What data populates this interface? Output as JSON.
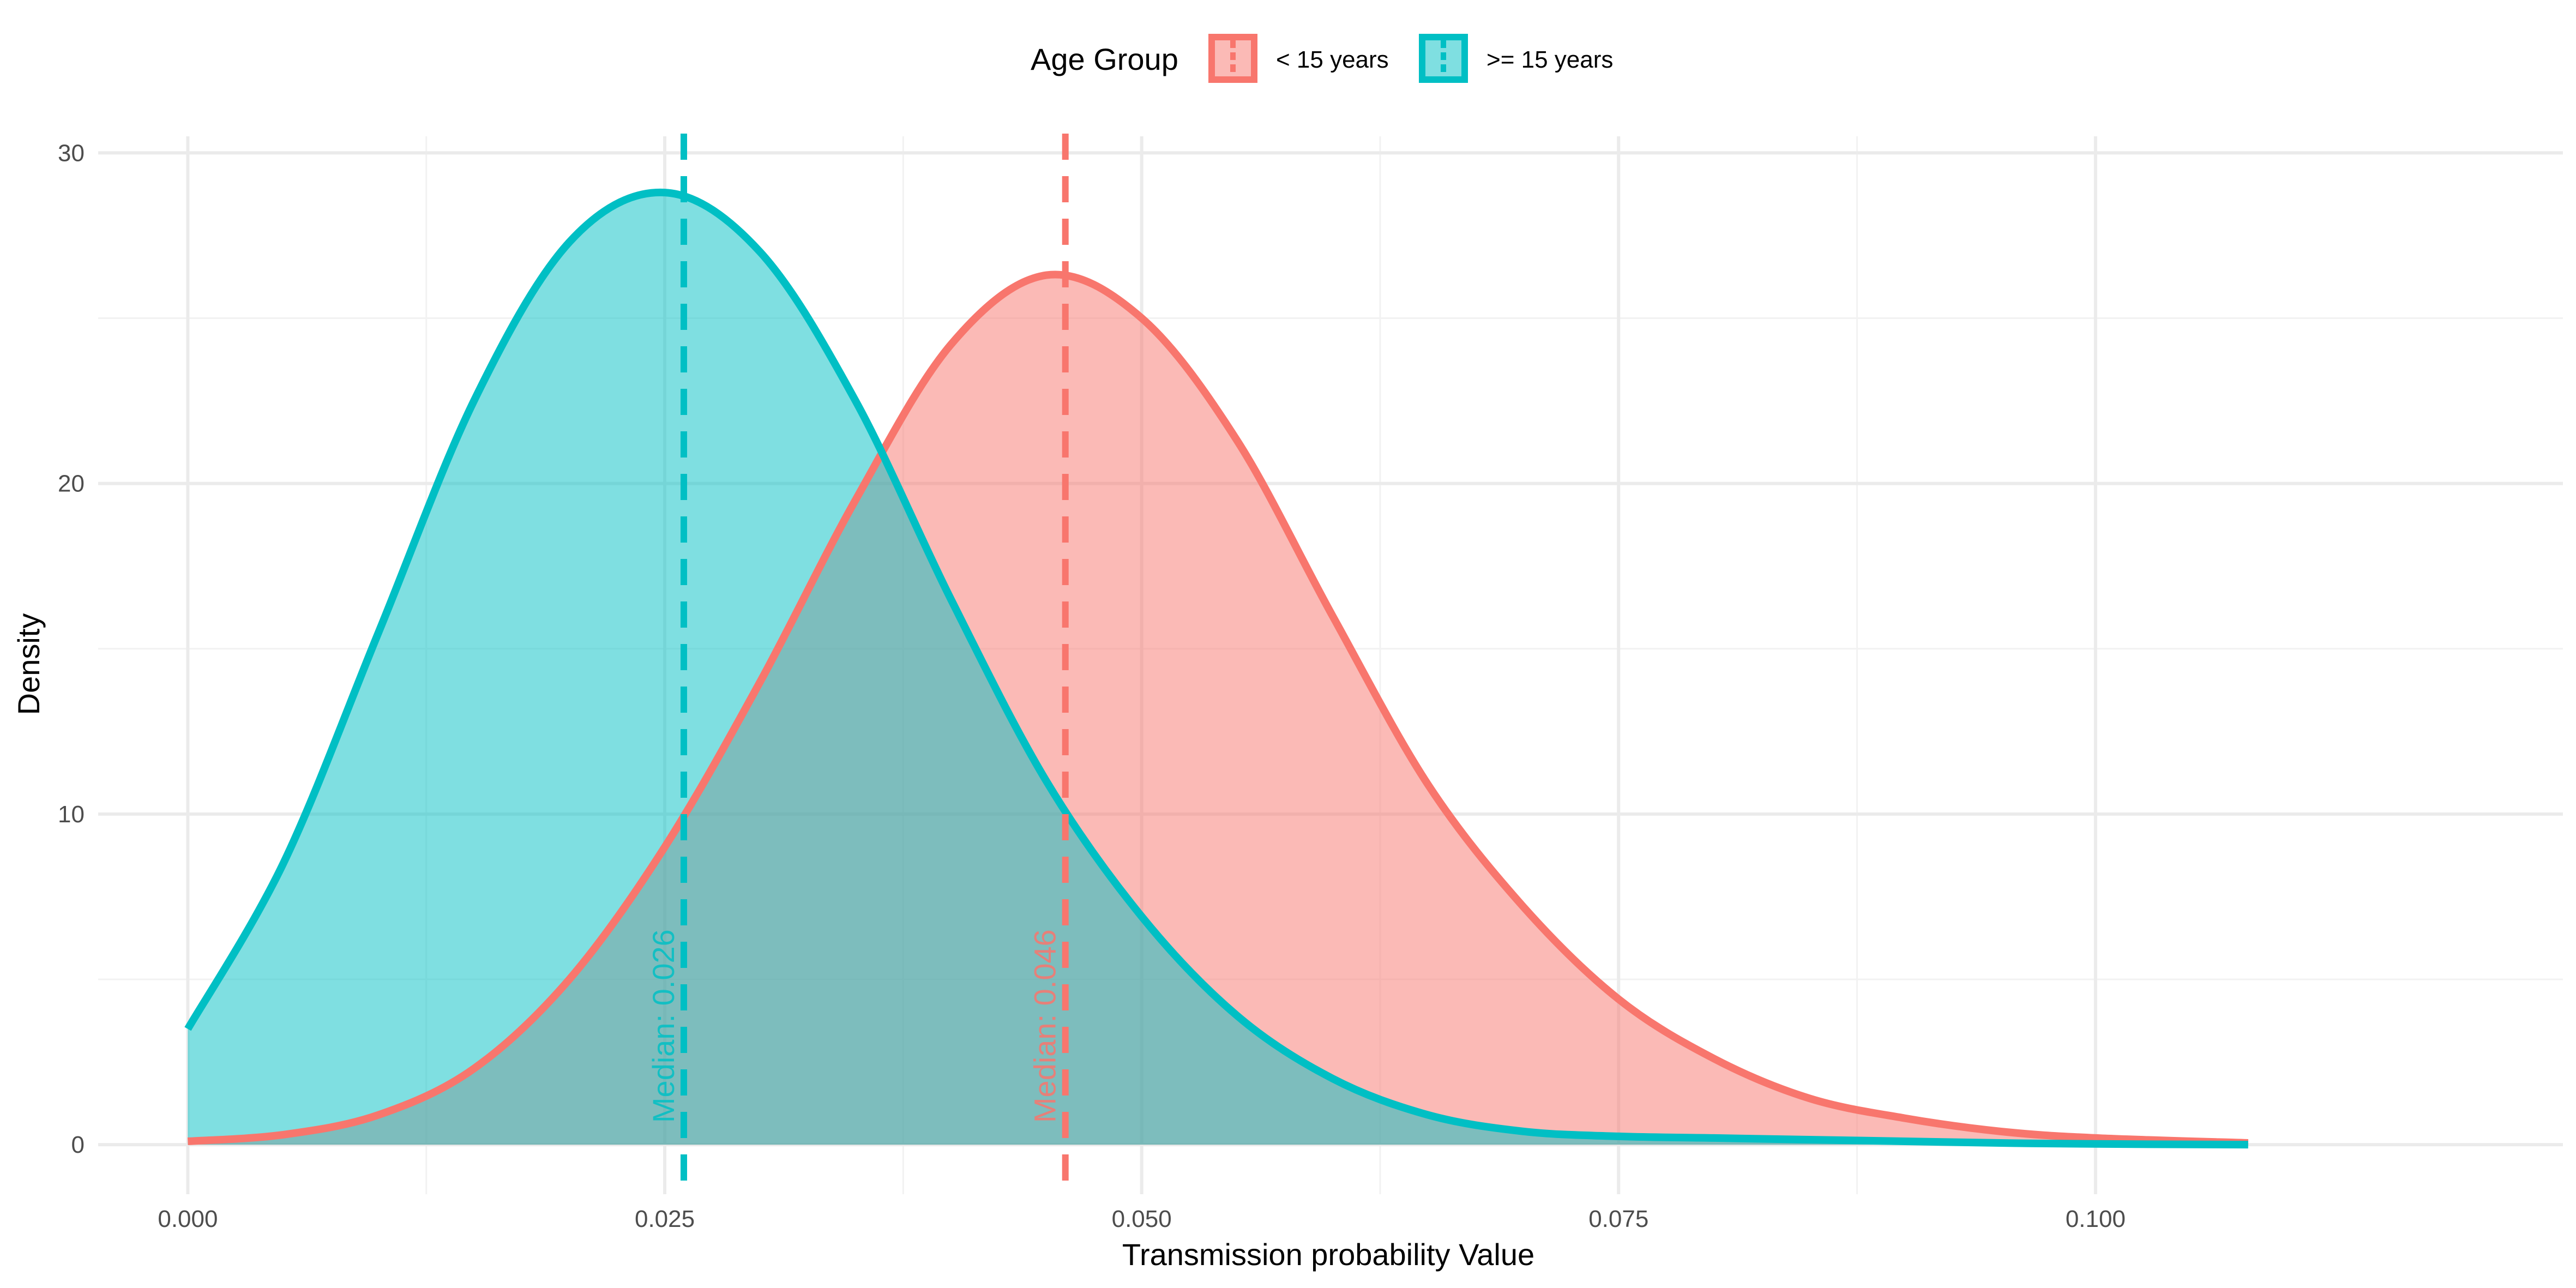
{
  "chart_data": {
    "type": "area",
    "xlabel": "Transmission probability Value",
    "ylabel": "Density",
    "xlim": [
      -0.0047,
      0.1245
    ],
    "ylim": [
      -1.5,
      30.5
    ],
    "x_ticks": [
      0.0,
      0.025,
      0.05,
      0.075,
      0.1
    ],
    "x_tick_labels": [
      "0.000",
      "0.025",
      "0.050",
      "0.075",
      "0.100"
    ],
    "y_ticks": [
      0,
      10,
      20,
      30
    ],
    "y_tick_labels": [
      "0",
      "10",
      "20",
      "30"
    ],
    "grid": true,
    "legend": {
      "title": "Age Group",
      "position": "top",
      "entries": [
        "< 15 years",
        ">= 15 years"
      ]
    },
    "series": [
      {
        "name": "< 15 years",
        "color": "#F8766D",
        "x": [
          0.0,
          0.005,
          0.01,
          0.015,
          0.02,
          0.025,
          0.03,
          0.035,
          0.04,
          0.045,
          0.05,
          0.055,
          0.06,
          0.065,
          0.07,
          0.075,
          0.08,
          0.085,
          0.09,
          0.095,
          0.1,
          0.108
        ],
        "y": [
          0.1,
          0.3,
          0.9,
          2.3,
          5.0,
          9.0,
          14.0,
          19.5,
          24.2,
          26.3,
          25.0,
          21.3,
          16.0,
          10.9,
          7.2,
          4.4,
          2.6,
          1.4,
          0.8,
          0.4,
          0.2,
          0.05
        ],
        "median": 0.046,
        "median_label": "Median: 0.046"
      },
      {
        "name": ">= 15 years",
        "color": "#00BFC4",
        "x": [
          0.0,
          0.005,
          0.01,
          0.015,
          0.02,
          0.025,
          0.03,
          0.035,
          0.04,
          0.045,
          0.05,
          0.055,
          0.06,
          0.065,
          0.07,
          0.075,
          0.08,
          0.085,
          0.09,
          0.095,
          0.1,
          0.108
        ],
        "y": [
          3.5,
          8.5,
          15.5,
          22.5,
          27.3,
          28.8,
          27.0,
          22.5,
          16.5,
          11.0,
          6.9,
          3.9,
          2.0,
          0.9,
          0.4,
          0.25,
          0.2,
          0.15,
          0.1,
          0.05,
          0.02,
          0.0
        ],
        "median": 0.026,
        "median_label": "Median: 0.026"
      }
    ]
  }
}
